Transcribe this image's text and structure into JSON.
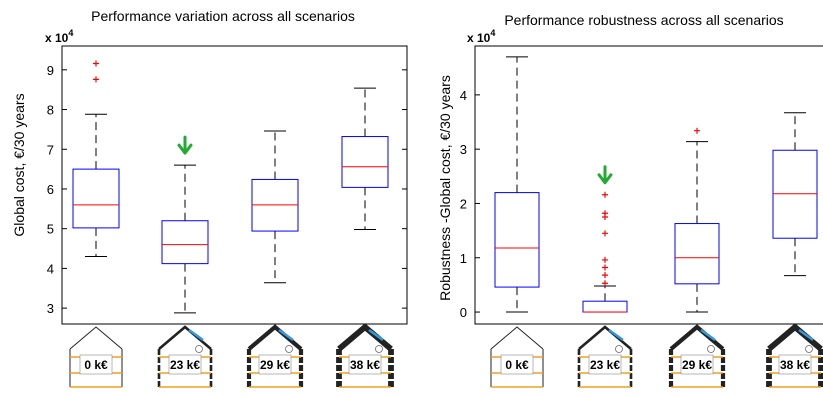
{
  "chart_data": [
    {
      "type": "box",
      "title": "Performance variation across all scenarios",
      "ylabel": "Global cost, €/30 years",
      "exponent_label": "x 10",
      "exponent_power": "4",
      "ylim": [
        2.6,
        9.6
      ],
      "yticks": [
        "3",
        "4",
        "5",
        "6",
        "7",
        "8",
        "9"
      ],
      "categories": [
        "0 k€",
        "23 k€",
        "29 k€",
        "38 k€"
      ],
      "boxes": [
        {
          "whisker_low": 4.3,
          "q1": 5.02,
          "median": 5.6,
          "q3": 6.5,
          "whisker_high": 7.88,
          "outliers": [
            8.76,
            9.16
          ]
        },
        {
          "whisker_low": 2.88,
          "q1": 4.12,
          "median": 4.6,
          "q3": 5.2,
          "whisker_high": 6.6,
          "outliers": []
        },
        {
          "whisker_low": 3.64,
          "q1": 4.94,
          "median": 5.6,
          "q3": 6.24,
          "whisker_high": 7.46,
          "outliers": []
        },
        {
          "whisker_low": 4.98,
          "q1": 6.04,
          "median": 6.56,
          "q3": 7.32,
          "whisker_high": 8.54,
          "outliers": []
        }
      ],
      "marker_arrow_category": 1
    },
    {
      "type": "box",
      "title": "Performance robustness across all scenarios",
      "ylabel": "Robustness -Global cost, €/30 years",
      "exponent_label": "x 10",
      "exponent_power": "4",
      "ylim": [
        -0.22,
        4.9
      ],
      "yticks": [
        "0",
        "1",
        "2",
        "3",
        "4"
      ],
      "categories": [
        "0 k€",
        "23 k€",
        "29 k€",
        "38 k€"
      ],
      "boxes": [
        {
          "whisker_low": 0.0,
          "q1": 0.46,
          "median": 1.18,
          "q3": 2.2,
          "whisker_high": 4.7,
          "outliers": []
        },
        {
          "whisker_low": 0.0,
          "q1": 0.0,
          "median": 0.0,
          "q3": 0.2,
          "whisker_high": 0.48,
          "outliers": [
            0.53,
            0.68,
            0.82,
            0.96,
            1.45,
            1.75,
            1.82,
            2.16
          ]
        },
        {
          "whisker_low": 0.0,
          "q1": 0.52,
          "median": 1.0,
          "q3": 1.63,
          "whisker_high": 3.14,
          "outliers": [
            3.34
          ]
        },
        {
          "whisker_low": 0.67,
          "q1": 1.36,
          "median": 2.18,
          "q3": 2.98,
          "whisker_high": 3.67,
          "outliers": []
        }
      ],
      "marker_arrow_category": 1
    }
  ],
  "colors": {
    "box": "#0000ff",
    "median": "#ff0000",
    "outlier": "#ff0000",
    "whisker": "#000000",
    "arrow": "#22aa33",
    "house_outline": "#222222",
    "floor": "#f0a020",
    "solar": "#3399dd"
  }
}
